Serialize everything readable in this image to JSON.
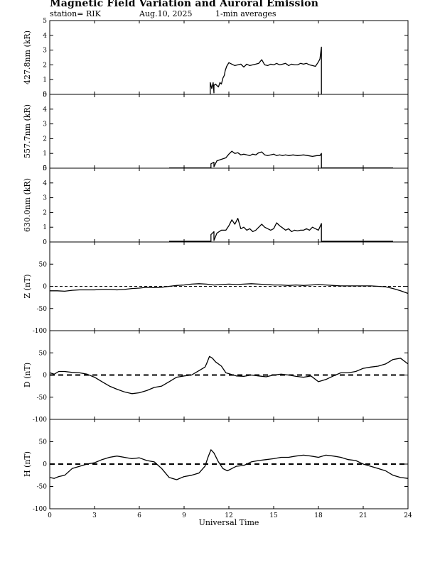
{
  "header": {
    "title": "Magnetic Field Variation and Auroral Emission",
    "station": "station= RIK",
    "date": "Aug.10, 2025",
    "averaging": "1-min averages"
  },
  "chart_data": {
    "type": "line",
    "xlabel": "Universal Time",
    "xlim": [
      0,
      24
    ],
    "xticks": [
      0,
      3,
      6,
      9,
      12,
      15,
      18,
      21,
      24
    ],
    "panels": [
      {
        "id": "427",
        "ylabel": "427.8nm (kR)",
        "ylim": [
          0,
          5
        ],
        "yticks": [
          0,
          1,
          2,
          3,
          4,
          5
        ],
        "zero_line": "none",
        "series": [
          {
            "x": [
              10.75,
              10.75,
              10.85,
              10.95,
              11.0,
              11.0,
              11.1,
              11.2,
              11.3,
              11.4,
              11.5,
              11.6,
              11.7,
              11.75,
              11.85,
              12.0,
              12.2,
              12.4,
              12.6,
              12.8,
              13.0,
              13.2,
              13.4,
              13.6,
              13.8,
              14.0,
              14.2,
              14.4,
              14.6,
              14.8,
              15.0,
              15.2,
              15.4,
              15.6,
              15.8,
              16.0,
              16.2,
              16.4,
              16.6,
              16.8,
              17.0,
              17.2,
              17.4,
              17.6,
              17.8,
              18.0,
              18.1,
              18.2,
              18.2
            ],
            "y": [
              0,
              0.8,
              0.4,
              0.8,
              0.1,
              0.6,
              0.7,
              0.6,
              0.5,
              0.8,
              0.7,
              1.1,
              1.3,
              1.6,
              1.9,
              2.15,
              2.05,
              1.95,
              2.0,
              2.05,
              1.85,
              2.05,
              1.95,
              2.0,
              2.05,
              2.1,
              2.35,
              2.0,
              1.95,
              2.05,
              2.0,
              2.1,
              2.0,
              2.05,
              2.1,
              1.95,
              2.05,
              2.0,
              2.0,
              2.1,
              2.05,
              2.1,
              2.0,
              1.95,
              1.9,
              2.2,
              2.4,
              3.2,
              0
            ]
          }
        ]
      },
      {
        "id": "557",
        "ylabel": "557.7nm (kR)",
        "ylim": [
          0,
          5
        ],
        "yticks": [
          0,
          1,
          2,
          3,
          4,
          5
        ],
        "zero_line": "none",
        "series": [
          {
            "x": [
              8.0,
              10.8,
              10.8,
              11.0,
              11.0,
              11.2,
              11.5,
              11.8,
              12.0,
              12.2,
              12.4,
              12.6,
              12.8,
              13.0,
              13.2,
              13.4,
              13.6,
              13.8,
              14.0,
              14.2,
              14.4,
              14.6,
              14.8,
              15.0,
              15.2,
              15.4,
              15.6,
              15.8,
              16.0,
              16.3,
              16.6,
              17.0,
              17.3,
              17.6,
              17.9,
              18.1,
              18.2,
              18.2,
              23.0
            ],
            "y": [
              0.02,
              0.02,
              0.3,
              0.4,
              0.1,
              0.5,
              0.6,
              0.7,
              0.95,
              1.15,
              1.0,
              1.05,
              0.9,
              0.95,
              0.9,
              0.85,
              0.95,
              0.9,
              1.05,
              1.1,
              0.9,
              0.85,
              0.9,
              0.95,
              0.85,
              0.9,
              0.85,
              0.9,
              0.85,
              0.9,
              0.85,
              0.9,
              0.85,
              0.8,
              0.85,
              0.85,
              1.0,
              0.02,
              0.02
            ]
          }
        ]
      },
      {
        "id": "630",
        "ylabel": "630.0nm (kR)",
        "ylim": [
          0,
          5
        ],
        "yticks": [
          0,
          1,
          2,
          3,
          4,
          5
        ],
        "zero_line": "none",
        "series": [
          {
            "x": [
              8.0,
              10.8,
              10.8,
              11.0,
              11.0,
              11.2,
              11.5,
              11.8,
              12.0,
              12.2,
              12.4,
              12.6,
              12.8,
              13.0,
              13.2,
              13.4,
              13.6,
              13.8,
              14.0,
              14.2,
              14.4,
              14.6,
              14.8,
              15.0,
              15.2,
              15.4,
              15.6,
              15.8,
              16.0,
              16.2,
              16.4,
              16.6,
              16.8,
              17.0,
              17.2,
              17.4,
              17.6,
              17.8,
              18.0,
              18.2,
              18.2,
              23.0
            ],
            "y": [
              0.05,
              0.05,
              0.5,
              0.7,
              0.1,
              0.6,
              0.8,
              0.8,
              1.1,
              1.5,
              1.2,
              1.6,
              0.9,
              1.0,
              0.8,
              0.9,
              0.7,
              0.8,
              1.0,
              1.2,
              1.0,
              0.9,
              0.8,
              0.9,
              1.3,
              1.1,
              0.95,
              0.8,
              0.9,
              0.7,
              0.8,
              0.75,
              0.8,
              0.8,
              0.9,
              0.8,
              1.0,
              0.9,
              0.8,
              1.25,
              0.05,
              0.05
            ]
          }
        ]
      },
      {
        "id": "Z",
        "ylabel": "Z (nT)",
        "ylim": [
          -100,
          100
        ],
        "yticks": [
          -100,
          -50,
          0,
          50
        ],
        "zero_line": "fine-dash",
        "series": [
          {
            "x": [
              0,
              0.5,
              1.0,
              1.5,
              2.0,
              2.5,
              3.0,
              3.5,
              4.0,
              4.5,
              5.0,
              5.5,
              6.0,
              6.5,
              7.0,
              7.5,
              8.0,
              8.5,
              9.0,
              9.5,
              10.0,
              10.5,
              11.0,
              11.5,
              12.0,
              12.5,
              13.0,
              13.5,
              14.0,
              14.5,
              15.0,
              15.5,
              16.0,
              16.5,
              17.0,
              17.5,
              18.0,
              18.5,
              19.0,
              19.5,
              20.0,
              20.5,
              21.0,
              21.5,
              22.0,
              22.5,
              23.0,
              23.5,
              24.0
            ],
            "y": [
              -10,
              -10,
              -11,
              -9,
              -8,
              -8,
              -8,
              -7,
              -7,
              -8,
              -7,
              -5,
              -4,
              -2,
              -3,
              -2,
              0,
              2,
              3,
              5,
              6,
              5,
              3,
              4,
              5,
              4,
              5,
              6,
              5,
              4,
              3,
              3,
              2,
              3,
              2,
              3,
              4,
              3,
              2,
              1,
              1,
              1,
              1,
              1,
              0,
              -1,
              -5,
              -10,
              -16
            ]
          }
        ]
      },
      {
        "id": "D",
        "ylabel": "D (nT)",
        "ylim": [
          -100,
          100
        ],
        "yticks": [
          -100,
          -50,
          0,
          50
        ],
        "zero_line": "heavy-dash",
        "series": [
          {
            "x": [
              0,
              0.3,
              0.6,
              1.0,
              1.5,
              2.0,
              2.5,
              3.0,
              3.5,
              4.0,
              4.5,
              5.0,
              5.5,
              6.0,
              6.5,
              7.0,
              7.5,
              8.0,
              8.5,
              9.0,
              9.5,
              10.0,
              10.4,
              10.5,
              10.7,
              10.9,
              11.1,
              11.3,
              11.5,
              11.8,
              12.0,
              12.5,
              13.0,
              13.5,
              14.0,
              14.5,
              15.0,
              15.5,
              16.0,
              16.5,
              17.0,
              17.5,
              18.0,
              18.5,
              19.0,
              19.5,
              20.0,
              20.5,
              21.0,
              21.5,
              22.0,
              22.5,
              23.0,
              23.5,
              24.0
            ],
            "y": [
              5,
              2,
              8,
              8,
              6,
              5,
              2,
              -5,
              -15,
              -25,
              -32,
              -38,
              -42,
              -40,
              -35,
              -28,
              -25,
              -15,
              -5,
              -2,
              0,
              10,
              18,
              25,
              42,
              38,
              30,
              25,
              20,
              5,
              3,
              -2,
              -3,
              0,
              -2,
              -4,
              0,
              2,
              0,
              -3,
              -5,
              -2,
              -15,
              -10,
              -2,
              5,
              5,
              8,
              15,
              18,
              20,
              25,
              35,
              38,
              25
            ]
          }
        ]
      },
      {
        "id": "H",
        "ylabel": "H (nT)",
        "ylim": [
          -100,
          100
        ],
        "yticks": [
          -100,
          -50,
          0,
          50
        ],
        "zero_line": "heavy-dash",
        "series": [
          {
            "x": [
              0,
              0.3,
              0.6,
              1.0,
              1.5,
              2.0,
              2.5,
              3.0,
              3.5,
              4.0,
              4.5,
              5.0,
              5.5,
              6.0,
              6.5,
              7.0,
              7.5,
              8.0,
              8.5,
              9.0,
              9.5,
              10.0,
              10.4,
              10.6,
              10.8,
              11.0,
              11.3,
              11.6,
              11.9,
              12.2,
              12.5,
              13.0,
              13.5,
              14.0,
              14.5,
              15.0,
              15.5,
              16.0,
              16.5,
              17.0,
              17.5,
              18.0,
              18.5,
              19.0,
              19.5,
              20.0,
              20.5,
              21.0,
              21.5,
              22.0,
              22.5,
              23.0,
              23.5,
              24.0
            ],
            "y": [
              -30,
              -32,
              -28,
              -25,
              -10,
              -5,
              0,
              3,
              10,
              15,
              18,
              15,
              12,
              14,
              8,
              5,
              -10,
              -30,
              -35,
              -28,
              -25,
              -20,
              -5,
              15,
              32,
              25,
              5,
              -10,
              -15,
              -10,
              -5,
              -3,
              5,
              8,
              10,
              12,
              15,
              15,
              18,
              20,
              18,
              15,
              20,
              18,
              15,
              10,
              8,
              0,
              -5,
              -10,
              -15,
              -25,
              -30,
              -32
            ]
          }
        ]
      }
    ]
  }
}
